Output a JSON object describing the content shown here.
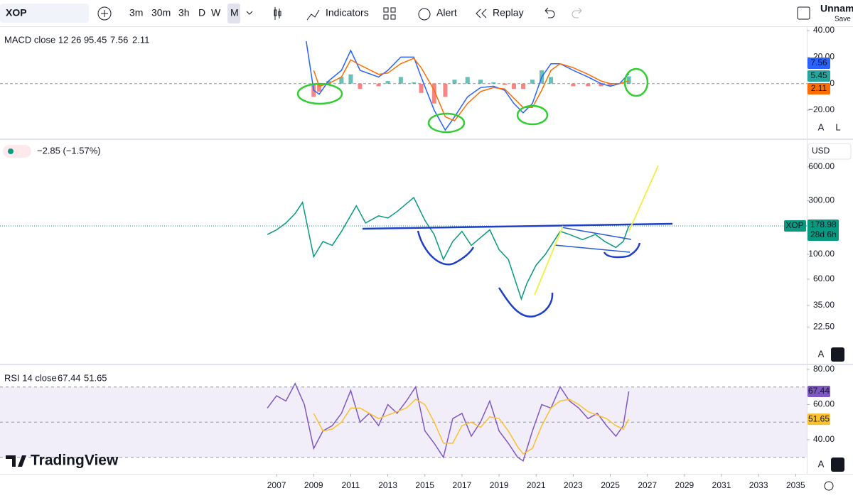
{
  "toolbar": {
    "symbol": "XOP",
    "intervals": [
      "3m",
      "30m",
      "3h",
      "D",
      "W",
      "M"
    ],
    "indicators": "Indicators",
    "alert": "Alert",
    "replay": "Replay",
    "layout": "Unname",
    "save": "Save"
  },
  "scale_buttons": [
    "A",
    "L"
  ],
  "brand": "TradingView",
  "chart_data": [
    {
      "type": "line",
      "title": "MACD close 12 26 9",
      "x": [
        2008.6,
        2009.0,
        2009.3,
        2009.8,
        2010.5,
        2011.0,
        2011.5,
        2012.5,
        2013.0,
        2013.7,
        2014.4,
        2014.8,
        2015.5,
        2016.1,
        2016.6,
        2017.3,
        2018.0,
        2018.7,
        2019.3,
        2019.8,
        2020.3,
        2020.8,
        2021.3,
        2021.8,
        2022.3,
        2023.0,
        2023.8,
        2024.5,
        2025.0,
        2025.5,
        2026.0
      ],
      "series": [
        {
          "type": "bar",
          "color": "#26a69a",
          "negative_color": "#ef5350",
          "values": [
            null,
            -10,
            -6,
            2,
            5,
            7,
            -4,
            -2,
            2,
            5,
            1,
            -7,
            -15,
            -10,
            3,
            5,
            3,
            1,
            -1,
            -4,
            -4,
            3,
            10,
            5,
            0,
            -2,
            -2,
            -2,
            -2,
            0,
            5.45
          ]
        },
        {
          "type": "line",
          "color": "#2962ff",
          "values": [
            32,
            -5,
            -8,
            2,
            10,
            25,
            10,
            5,
            10,
            20,
            20,
            5,
            -20,
            -35,
            -25,
            -10,
            -3,
            -2,
            -5,
            -15,
            -22,
            -15,
            5,
            15,
            15,
            10,
            5,
            0,
            -2,
            0,
            7.56
          ]
        },
        {
          "type": "line",
          "color": "#ff6d00",
          "values": [
            null,
            10,
            -2,
            0,
            5,
            18,
            14,
            7,
            8,
            15,
            19,
            12,
            -5,
            -25,
            -28,
            -15,
            -6,
            -3,
            -4,
            -11,
            -18,
            -18,
            -5,
            10,
            15,
            12,
            7,
            2,
            0,
            0,
            2.11
          ]
        }
      ],
      "ylim": [
        -41.4,
        42.7
      ],
      "yticks": [
        {
          "value": 40,
          "label": "40.00"
        },
        {
          "value": 20,
          "label": "20.00"
        },
        0,
        {
          "value": -20,
          "label": "−20.00"
        }
      ],
      "zero_line": true
    },
    {
      "type": "line",
      "change": "−2.85 (−1.57%)",
      "currency": "USD",
      "symbol_label": "XOP",
      "countdown": "28d 6h",
      "x": [
        2006.5,
        2007.0,
        2007.5,
        2008.0,
        2008.4,
        2009.0,
        2009.5,
        2010.0,
        2010.5,
        2011.3,
        2011.8,
        2012.5,
        2013.0,
        2013.5,
        2014.4,
        2015.0,
        2015.5,
        2016.0,
        2016.5,
        2017.0,
        2017.5,
        2018.5,
        2019.0,
        2019.5,
        2020.2,
        2020.5,
        2021.0,
        2021.5,
        2022.3,
        2022.8,
        2023.5,
        2024.2,
        2024.7,
        2025.3,
        2025.7,
        2026.0
      ],
      "series": [
        {
          "type": "line",
          "color": "#089981",
          "values": [
            150,
            165,
            190,
            230,
            290,
            95,
            130,
            120,
            160,
            270,
            190,
            220,
            210,
            240,
            320,
            200,
            150,
            90,
            130,
            160,
            120,
            165,
            110,
            90,
            40,
            55,
            80,
            100,
            160,
            150,
            135,
            150,
            130,
            115,
            130,
            178.98
          ]
        }
      ],
      "log_scale": true,
      "ylim": [
        10.9,
        1028
      ],
      "yticks": [
        {
          "value": 600,
          "label": "600.00"
        },
        {
          "value": 300,
          "label": "300.00"
        },
        {
          "value": 100,
          "label": "100.00"
        },
        {
          "value": 60,
          "label": "60.00"
        },
        {
          "value": 35,
          "label": "35.00"
        },
        {
          "value": 22.5,
          "label": "22.50"
        }
      ]
    },
    {
      "type": "line",
      "title": "RSI 14 close",
      "x": [
        2006.5,
        2007.0,
        2007.5,
        2008.0,
        2008.5,
        2009.0,
        2009.5,
        2010.0,
        2010.5,
        2011.0,
        2011.5,
        2012.0,
        2012.5,
        2013.0,
        2013.5,
        2014.0,
        2014.5,
        2015.0,
        2015.5,
        2016.0,
        2016.5,
        2017.0,
        2017.5,
        2018.0,
        2018.5,
        2019.0,
        2019.5,
        2020.0,
        2020.3,
        2020.8,
        2021.3,
        2021.8,
        2022.3,
        2022.8,
        2023.3,
        2023.8,
        2024.3,
        2024.8,
        2025.3,
        2025.7,
        2026.0
      ],
      "series": [
        {
          "type": "line",
          "color": "#7e57c2",
          "values": [
            58,
            65,
            62,
            72,
            60,
            35,
            45,
            48,
            55,
            68,
            50,
            55,
            48,
            60,
            55,
            62,
            70,
            45,
            38,
            30,
            52,
            55,
            42,
            50,
            62,
            45,
            38,
            30,
            28,
            45,
            60,
            58,
            70,
            62,
            58,
            52,
            55,
            48,
            42,
            48,
            67.44
          ]
        },
        {
          "type": "line",
          "color": "#fbc02d",
          "values": [
            null,
            null,
            null,
            null,
            null,
            55,
            45,
            46,
            50,
            58,
            58,
            55,
            52,
            54,
            56,
            58,
            63,
            60,
            50,
            38,
            38,
            48,
            50,
            47,
            53,
            52,
            45,
            36,
            32,
            35,
            48,
            58,
            62,
            63,
            60,
            56,
            54,
            52,
            48,
            46,
            51.65
          ]
        }
      ],
      "bands": [
        30,
        50,
        70
      ],
      "ylim": [
        21.4,
        82
      ],
      "yticks": [
        {
          "value": 80,
          "label": "80.00"
        },
        {
          "value": 60,
          "label": "60.00"
        },
        {
          "value": 40,
          "label": "40.00"
        }
      ],
      "xlim": [
        1992.08,
        2035.6
      ],
      "xticks": [
        2007,
        2009,
        2011,
        2013,
        2015,
        2017,
        2019,
        2021,
        2023,
        2025,
        2027,
        2029,
        2031,
        2033,
        2035
      ]
    }
  ]
}
